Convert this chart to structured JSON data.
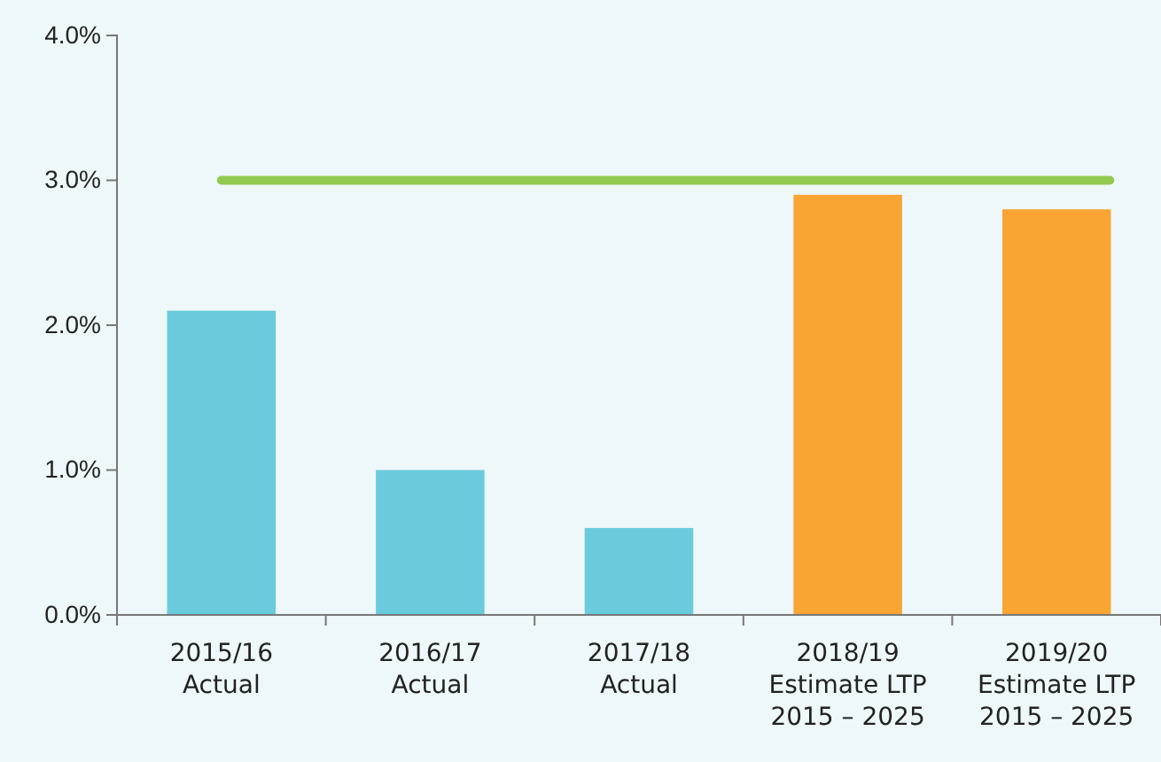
{
  "chart_data": {
    "type": "bar",
    "categories": [
      "2015/16\nActual",
      "2016/17\nActual",
      "2017/18\nActual",
      "2018/19\nEstimate LTP\n2015 – 2025",
      "2019/20\nEstimate LTP\n2015 – 2025"
    ],
    "values": [
      2.1,
      1.0,
      0.6,
      2.9,
      2.8
    ],
    "colors": [
      "#69cbdb",
      "#69cbdb",
      "#69cbdb",
      "#f9a533",
      "#f9a533"
    ],
    "ylim": [
      0,
      4
    ],
    "yticks": [
      {
        "value": 0,
        "label": "0.0%"
      },
      {
        "value": 1,
        "label": "1.0%"
      },
      {
        "value": 2,
        "label": "2.0%"
      },
      {
        "value": 3,
        "label": "3.0%"
      },
      {
        "value": 4,
        "label": "4.0%"
      }
    ],
    "ref_lines": [
      {
        "axis": "y",
        "value": 3.0,
        "color": "#92c950"
      }
    ]
  }
}
